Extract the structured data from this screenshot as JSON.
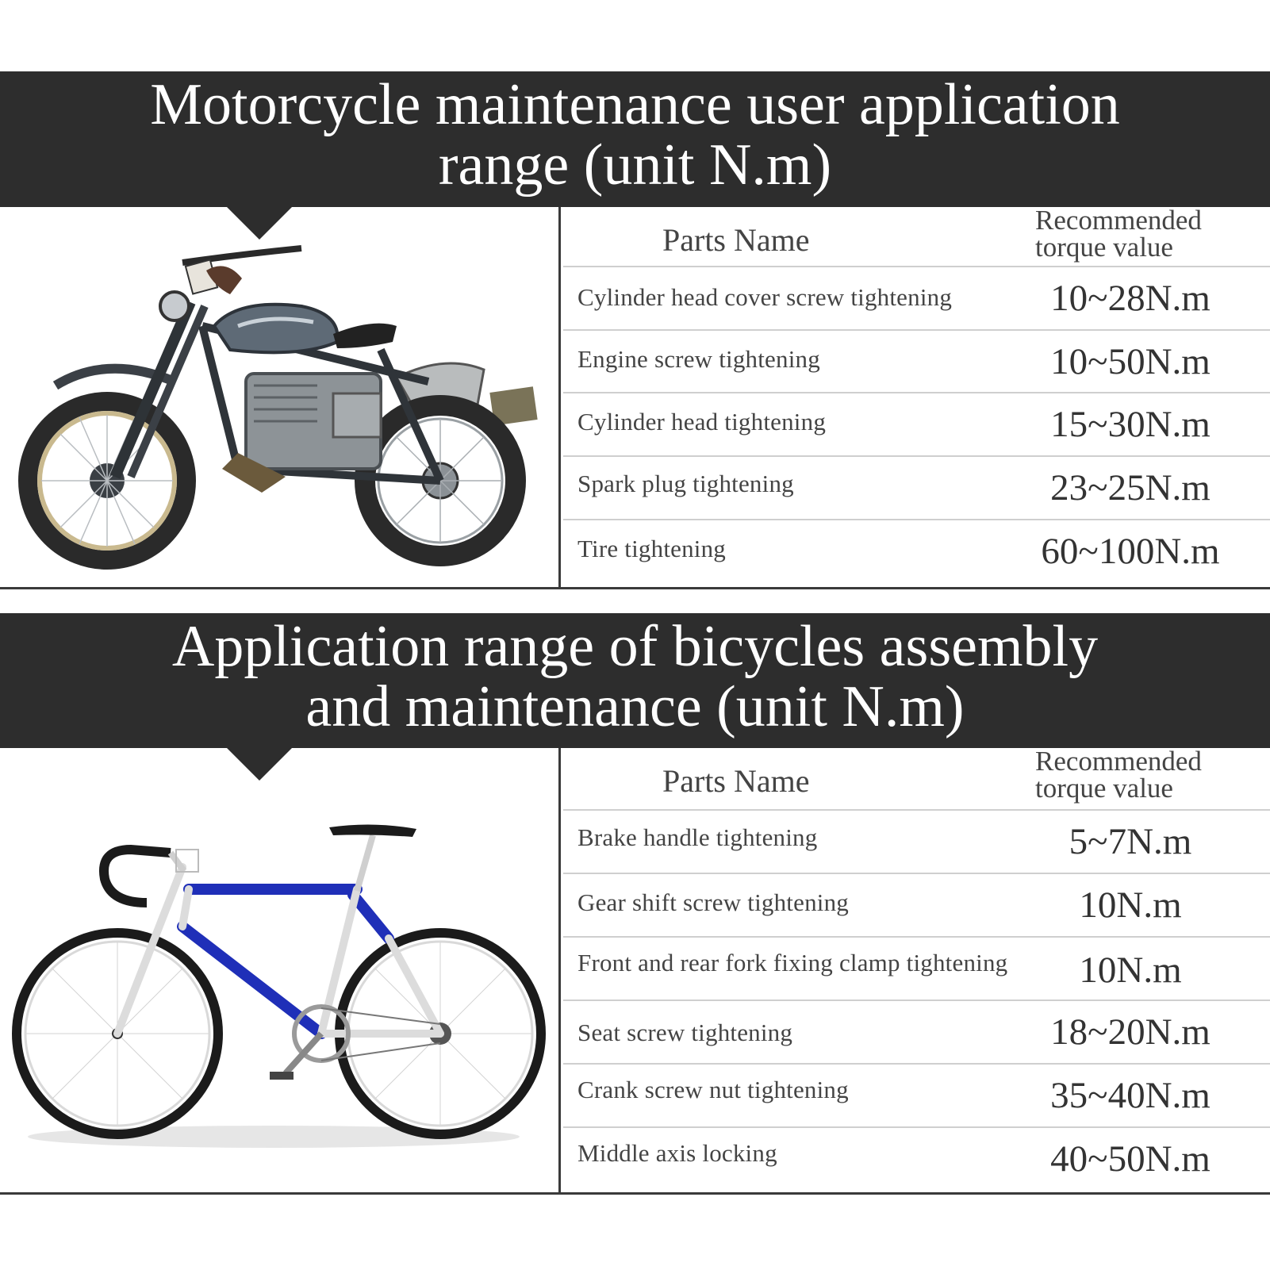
{
  "motorcycle": {
    "title_line1": "Motorcycle maintenance user application",
    "title_line2": "range (unit N.m)",
    "header": {
      "parts_name": "Parts Name",
      "torque_line1": "Recommended",
      "torque_line2": "torque value"
    },
    "rows": [
      {
        "part": "Cylinder head cover screw tightening",
        "value": "10~28N.m"
      },
      {
        "part": "Engine screw tightening",
        "value": "10~50N.m"
      },
      {
        "part": "Cylinder head tightening",
        "value": "15~30N.m"
      },
      {
        "part": "Spark plug tightening",
        "value": "23~25N.m"
      },
      {
        "part": "Tire tightening",
        "value": "60~100N.m"
      }
    ]
  },
  "bicycle": {
    "title_line1": "Application range of bicycles assembly",
    "title_line2": "and maintenance (unit N.m)",
    "header": {
      "parts_name": "Parts Name",
      "torque_line1": "Recommended",
      "torque_line2": "torque value"
    },
    "rows": [
      {
        "part": "Brake handle tightening",
        "value": "5~7N.m"
      },
      {
        "part": "Gear shift screw tightening",
        "value": "10N.m"
      },
      {
        "part": "Front and rear fork fixing clamp tightening",
        "value": "10N.m"
      },
      {
        "part": "Seat screw tightening",
        "value": "18~20N.m"
      },
      {
        "part": "Crank screw nut tightening",
        "value": "35~40N.m"
      },
      {
        "part": "Middle axis locking",
        "value": "40~50N.m"
      }
    ]
  },
  "colors": {
    "banner": "#2d2d2d",
    "frame_blue": "#1f2fb8"
  }
}
